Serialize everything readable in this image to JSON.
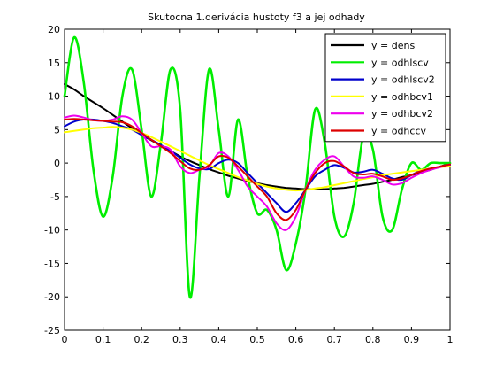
{
  "chart_data": {
    "type": "line",
    "title": "Skutocna 1.derivácia hustoty f3   a jej odhady",
    "xlabel": "",
    "ylabel": "",
    "xlim": [
      0,
      1
    ],
    "ylim": [
      -25,
      20
    ],
    "xticks": [
      "0",
      "0.1",
      "0.2",
      "0.3",
      "0.4",
      "0.5",
      "0.6",
      "0.7",
      "0.8",
      "0.9",
      "1"
    ],
    "yticks": [
      "20",
      "15",
      "10",
      "5",
      "0",
      "-5",
      "-10",
      "-15",
      "-20",
      "-25"
    ],
    "grid": false,
    "legend_position": "top-right",
    "x": [
      0,
      0.025,
      0.05,
      0.075,
      0.1,
      0.125,
      0.15,
      0.175,
      0.2,
      0.225,
      0.25,
      0.275,
      0.3,
      0.325,
      0.35,
      0.375,
      0.4,
      0.425,
      0.45,
      0.475,
      0.5,
      0.525,
      0.55,
      0.575,
      0.6,
      0.625,
      0.65,
      0.675,
      0.7,
      0.725,
      0.75,
      0.775,
      0.8,
      0.825,
      0.85,
      0.875,
      0.9,
      0.925,
      0.95,
      0.975,
      1
    ],
    "series": [
      {
        "name": "y = dens",
        "color": "#000000",
        "values": [
          11.8,
          11.0,
          10.0,
          9.1,
          8.2,
          7.2,
          6.2,
          5.2,
          4.2,
          3.4,
          2.6,
          1.8,
          1.0,
          0.3,
          -0.3,
          -0.9,
          -1.4,
          -1.9,
          -2.3,
          -2.7,
          -3.0,
          -3.3,
          -3.5,
          -3.7,
          -3.8,
          -3.9,
          -3.9,
          -3.9,
          -3.8,
          -3.7,
          -3.5,
          -3.3,
          -3.1,
          -2.8,
          -2.5,
          -2.1,
          -1.8,
          -1.4,
          -1.0,
          -0.5,
          -0.1
        ]
      },
      {
        "name": "y = odhlscv",
        "color": "#00ee00",
        "values": [
          10.0,
          18.8,
          12.0,
          -1.0,
          -8.0,
          -2.0,
          10.0,
          14.0,
          5.0,
          -5.0,
          3.0,
          14.0,
          8.0,
          -20.0,
          -2.0,
          14.0,
          5.0,
          -5.0,
          6.5,
          -2.0,
          -7.5,
          -7.0,
          -10.0,
          -16.0,
          -12.0,
          -4.0,
          8.0,
          3.0,
          -8.0,
          -11.0,
          -6.0,
          4.0,
          2.0,
          -8.0,
          -10.0,
          -4.0,
          0.0,
          -1.0,
          0.0,
          0.0,
          0.0
        ]
      },
      {
        "name": "y = odhlscv2",
        "color": "#0000cc",
        "values": [
          5.5,
          6.2,
          6.5,
          6.5,
          6.3,
          6.0,
          5.5,
          5.0,
          4.2,
          3.5,
          2.7,
          1.8,
          0.8,
          -0.2,
          -0.8,
          -0.9,
          0.0,
          0.5,
          0.0,
          -1.5,
          -3.0,
          -4.5,
          -6.0,
          -7.3,
          -6.0,
          -4.0,
          -2.0,
          -1.0,
          -0.3,
          -0.7,
          -1.4,
          -1.3,
          -1.0,
          -1.6,
          -2.3,
          -2.5,
          -1.8,
          -1.1,
          -0.8,
          -0.6,
          -0.3
        ]
      },
      {
        "name": "y = odhbcv1",
        "color": "#ffff00",
        "values": [
          4.6,
          4.8,
          5.0,
          5.2,
          5.3,
          5.4,
          5.3,
          5.0,
          4.5,
          3.9,
          3.2,
          2.5,
          1.8,
          1.1,
          0.4,
          -0.3,
          -0.9,
          -1.5,
          -2.1,
          -2.6,
          -3.1,
          -3.5,
          -3.8,
          -4.0,
          -4.1,
          -4.0,
          -3.8,
          -3.6,
          -3.3,
          -3.0,
          -2.7,
          -2.4,
          -2.1,
          -1.8,
          -1.6,
          -1.4,
          -1.2,
          -1.0,
          -0.8,
          -0.6,
          -0.5
        ]
      },
      {
        "name": "y = odhbcv2",
        "color": "#ee00ee",
        "values": [
          6.8,
          7.1,
          6.8,
          6.4,
          6.3,
          6.5,
          7.0,
          6.5,
          4.5,
          2.5,
          2.5,
          2.0,
          -0.5,
          -1.5,
          -1.0,
          -0.5,
          1.5,
          1.0,
          -1.0,
          -3.5,
          -5.0,
          -6.5,
          -9.0,
          -10.0,
          -8.0,
          -4.0,
          -1.0,
          0.5,
          1.0,
          -0.5,
          -2.0,
          -2.2,
          -2.0,
          -2.5,
          -3.2,
          -3.0,
          -2.2,
          -1.5,
          -1.0,
          -0.6,
          -0.2
        ]
      },
      {
        "name": "y = odhccv",
        "color": "#dd0000",
        "values": [
          6.5,
          6.6,
          6.5,
          6.4,
          6.3,
          6.2,
          6.1,
          5.5,
          4.5,
          3.5,
          2.5,
          1.5,
          0.3,
          -0.8,
          -1.0,
          -0.3,
          1.0,
          0.8,
          -0.5,
          -2.0,
          -3.5,
          -5.0,
          -7.5,
          -8.5,
          -7.0,
          -4.0,
          -1.5,
          0.0,
          0.3,
          -0.5,
          -1.5,
          -1.7,
          -1.6,
          -2.0,
          -2.5,
          -2.3,
          -1.8,
          -1.2,
          -0.8,
          -0.5,
          -0.2
        ]
      }
    ]
  }
}
